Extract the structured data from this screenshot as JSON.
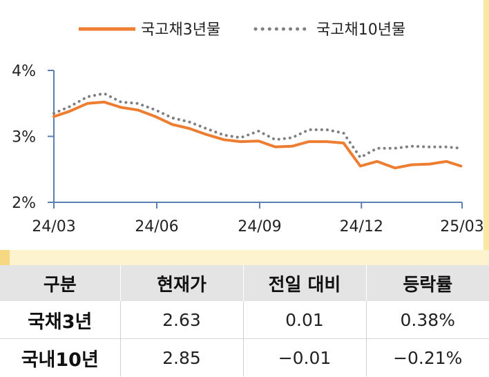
{
  "chart_data": {
    "type": "line",
    "title": "",
    "xlabel": "",
    "ylabel": "",
    "ylim": [
      2,
      4
    ],
    "y_ticks": [
      "4%",
      "3%",
      "2%"
    ],
    "y_tick_values": [
      4,
      3,
      2
    ],
    "x_ticks": [
      "24/03",
      "24/06",
      "24/09",
      "24/12",
      "25/03"
    ],
    "x_tick_dates": [
      "2024-03-01",
      "2024-06-01",
      "2024-09-01",
      "2024-12-01",
      "2025-03-01"
    ],
    "x_range": [
      "2024-03-01",
      "2025-03-01"
    ],
    "legend_position": "top-center",
    "grid": false,
    "series": [
      {
        "name": "국고채3년물",
        "color": "#ed7d31",
        "style": "solid",
        "x": [
          "2024-03-01",
          "2024-03-15",
          "2024-03-31",
          "2024-04-15",
          "2024-04-30",
          "2024-05-15",
          "2024-05-31",
          "2024-06-15",
          "2024-06-30",
          "2024-07-15",
          "2024-07-31",
          "2024-08-15",
          "2024-08-31",
          "2024-09-15",
          "2024-09-30",
          "2024-10-15",
          "2024-10-31",
          "2024-11-15",
          "2024-11-30",
          "2024-12-15",
          "2024-12-31",
          "2025-01-15",
          "2025-01-31",
          "2025-02-15",
          "2025-02-28"
        ],
        "values": [
          3.3,
          3.38,
          3.5,
          3.52,
          3.44,
          3.4,
          3.3,
          3.18,
          3.12,
          3.03,
          2.95,
          2.92,
          2.93,
          2.84,
          2.85,
          2.92,
          2.92,
          2.9,
          2.55,
          2.62,
          2.52,
          2.57,
          2.58,
          2.62,
          2.55
        ]
      },
      {
        "name": "국고채10년물",
        "color": "#7f7f7f",
        "style": "dotted",
        "x": [
          "2024-03-01",
          "2024-03-15",
          "2024-03-31",
          "2024-04-15",
          "2024-04-30",
          "2024-05-15",
          "2024-05-31",
          "2024-06-15",
          "2024-06-30",
          "2024-07-15",
          "2024-07-31",
          "2024-08-15",
          "2024-08-31",
          "2024-09-15",
          "2024-09-30",
          "2024-10-15",
          "2024-10-31",
          "2024-11-15",
          "2024-11-30",
          "2024-12-15",
          "2024-12-31",
          "2025-01-15",
          "2025-01-31",
          "2025-02-15",
          "2025-02-28"
        ],
        "values": [
          3.35,
          3.45,
          3.6,
          3.65,
          3.52,
          3.5,
          3.4,
          3.28,
          3.22,
          3.12,
          3.02,
          2.98,
          3.08,
          2.95,
          2.98,
          3.1,
          3.1,
          3.05,
          2.68,
          2.82,
          2.82,
          2.85,
          2.84,
          2.84,
          2.82
        ]
      }
    ]
  },
  "table": {
    "headers": [
      "구분",
      "현재가",
      "전일 대비",
      "등락률"
    ],
    "rows": [
      [
        "국채3년",
        "2.63",
        "0.01",
        "0.38%"
      ],
      [
        "국내10년",
        "2.85",
        "−0.01",
        "−0.21%"
      ]
    ]
  },
  "colors": {
    "header_bg": "#e4e4e4",
    "band": "#fdf3cf",
    "frame_accent": "#fbe7a1",
    "axis": "#5b7fb0"
  }
}
